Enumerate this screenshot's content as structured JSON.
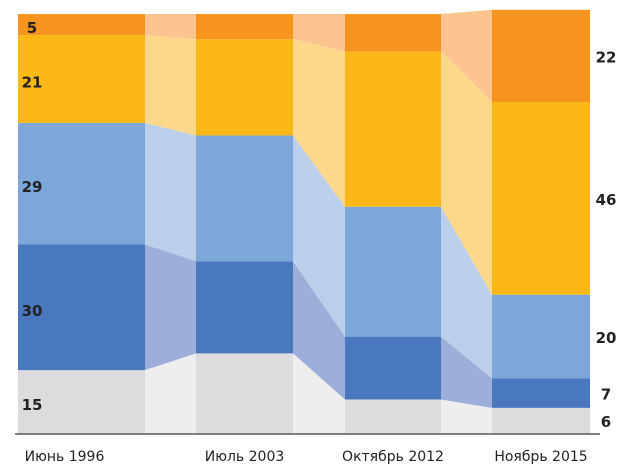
{
  "chart_data": {
    "type": "stacked-bar",
    "categories": [
      "Июнь 1996",
      "Июль 2003",
      "Октябрь 2012",
      "Ноябрь 2015"
    ],
    "series": [
      {
        "color": "#dcdcde",
        "link_color": "#eeeeef",
        "values": [
          15,
          19,
          8,
          6
        ]
      },
      {
        "color": "#4a78be",
        "link_color": "#9daedb",
        "values": [
          30,
          22,
          15,
          7
        ]
      },
      {
        "color": "#7da7d9",
        "link_color": "#bccfea",
        "values": [
          29,
          30,
          31,
          20
        ]
      },
      {
        "color": "#fbb817",
        "link_color": "#fdd88b",
        "values": [
          21,
          23,
          37,
          46
        ]
      },
      {
        "color": "#f7941e",
        "link_color": "#fcc590",
        "values": [
          5,
          6,
          9,
          22
        ]
      }
    ],
    "ylim": [
      0,
      100
    ]
  }
}
